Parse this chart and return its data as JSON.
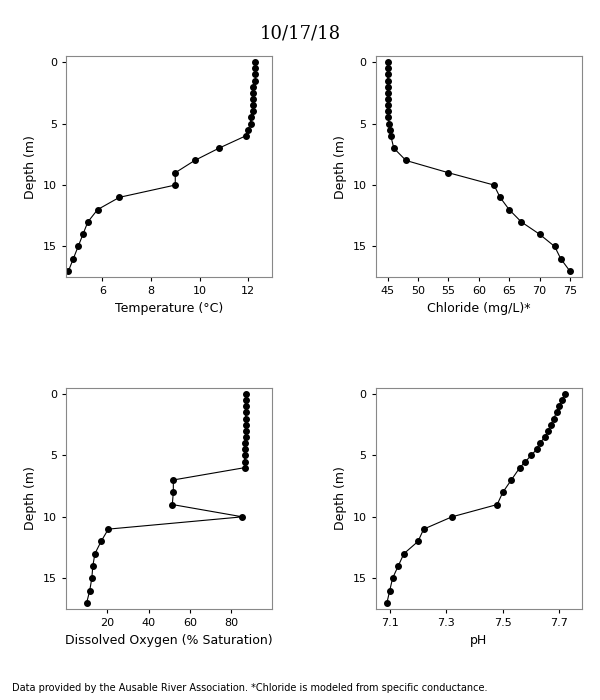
{
  "title": "10/17/18",
  "footnote": "Data provided by the Ausable River Association. *Chloride is modeled from specific conductance.",
  "temp_depth": [
    0,
    0.5,
    1,
    1.5,
    2,
    2.5,
    3,
    3.5,
    4,
    4.5,
    5,
    5.5,
    6,
    7,
    8,
    9,
    10,
    11,
    12,
    13,
    14,
    15,
    16,
    17
  ],
  "temp_vals": [
    12.3,
    12.3,
    12.3,
    12.3,
    12.2,
    12.2,
    12.2,
    12.2,
    12.2,
    12.1,
    12.1,
    12.0,
    11.9,
    10.8,
    9.8,
    9.0,
    9.0,
    6.7,
    5.8,
    5.4,
    5.2,
    5.0,
    4.8,
    4.6
  ],
  "temp_xlim": [
    4.5,
    13
  ],
  "temp_xticks": [
    6,
    8,
    10,
    12
  ],
  "temp_xlabel": "Temperature (°C)",
  "chloride_depth": [
    0,
    0.5,
    1,
    1.5,
    2,
    2.5,
    3,
    3.5,
    4,
    4.5,
    5,
    5.5,
    6,
    7,
    8,
    9,
    10,
    11,
    12,
    13,
    14,
    15,
    16,
    17
  ],
  "chloride_vals": [
    45.0,
    45.0,
    45.0,
    45.0,
    45.0,
    45.0,
    45.0,
    45.0,
    45.1,
    45.1,
    45.2,
    45.3,
    45.5,
    46.0,
    48.0,
    55.0,
    62.5,
    63.5,
    65.0,
    67.0,
    70.0,
    72.5,
    73.5,
    75.0
  ],
  "chloride_xlim": [
    43,
    77
  ],
  "chloride_xticks": [
    45,
    50,
    55,
    60,
    65,
    70,
    75
  ],
  "chloride_xlabel": "Chloride (mg/L)*",
  "do_depth": [
    0,
    0.5,
    1,
    1.5,
    2,
    2.5,
    3,
    3.5,
    4,
    4.5,
    5,
    5.5,
    6,
    7,
    8,
    9,
    10,
    11,
    12,
    13,
    14,
    15,
    16,
    17
  ],
  "do_vals": [
    87.0,
    87.0,
    87.0,
    87.0,
    87.0,
    87.0,
    87.0,
    87.0,
    86.5,
    86.5,
    86.5,
    86.5,
    86.5,
    52.0,
    52.0,
    51.5,
    85.5,
    20.5,
    17.0,
    14.0,
    13.0,
    12.5,
    11.5,
    10.0
  ],
  "do_xlim": [
    0,
    100
  ],
  "do_xticks": [
    20,
    40,
    60,
    80
  ],
  "do_xlabel": "Dissolved Oxygen (% Saturation)",
  "ph_depth": [
    0,
    0.5,
    1,
    1.5,
    2,
    2.5,
    3,
    3.5,
    4,
    4.5,
    5,
    5.5,
    6,
    7,
    8,
    9,
    10,
    11,
    12,
    13,
    14,
    15,
    16,
    17
  ],
  "ph_vals": [
    7.72,
    7.71,
    7.7,
    7.69,
    7.68,
    7.67,
    7.66,
    7.65,
    7.63,
    7.62,
    7.6,
    7.58,
    7.56,
    7.53,
    7.5,
    7.48,
    7.32,
    7.22,
    7.2,
    7.15,
    7.13,
    7.11,
    7.1,
    7.09
  ],
  "ph_xlim": [
    7.05,
    7.78
  ],
  "ph_xticks": [
    7.1,
    7.3,
    7.5,
    7.7
  ],
  "ph_xlabel": "pH",
  "depth_ylim": [
    17.5,
    -0.5
  ],
  "depth_yticks": [
    0,
    5,
    10,
    15
  ],
  "ylabel": "Depth (m)",
  "line_color": "#000000",
  "marker": "o",
  "markersize": 4,
  "markerfacecolor": "#000000",
  "linewidth": 0.8,
  "bg_color": "#ffffff"
}
